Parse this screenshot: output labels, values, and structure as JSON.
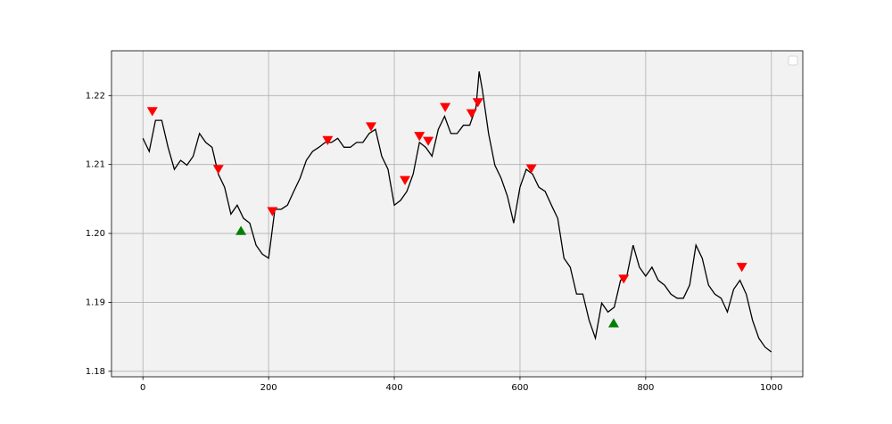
{
  "chart_data": {
    "type": "line",
    "xlim": [
      -50,
      1050
    ],
    "ylim": [
      1.1792,
      1.2265
    ],
    "xticks": [
      0,
      200,
      400,
      600,
      800,
      1000
    ],
    "yticks": [
      1.18,
      1.19,
      {
        "value": 1.2,
        "label": "1.20"
      },
      1.21,
      1.22
    ],
    "grid": true,
    "legend": "upper right",
    "series": [
      {
        "kind": "line",
        "color": "#000000",
        "x": [
          0,
          10,
          20,
          30,
          40,
          50,
          60,
          70,
          80,
          90,
          100,
          110,
          120,
          130,
          140,
          150,
          160,
          170,
          180,
          190,
          200,
          210,
          220,
          230,
          240,
          250,
          260,
          270,
          280,
          290,
          300,
          310,
          320,
          330,
          340,
          350,
          360,
          370,
          380,
          390,
          400,
          410,
          420,
          430,
          440,
          450,
          460,
          470,
          480,
          490,
          500,
          510,
          520,
          530,
          535,
          540,
          550,
          560,
          570,
          580,
          590,
          600,
          610,
          620,
          630,
          640,
          650,
          660,
          670,
          680,
          690,
          700,
          710,
          720,
          730,
          740,
          750,
          760,
          770,
          780,
          790,
          800,
          810,
          820,
          830,
          840,
          850,
          860,
          870,
          880,
          890,
          900,
          910,
          920,
          930,
          940,
          950,
          960,
          970,
          980,
          990,
          1000
        ],
        "values": [
          1.2138,
          1.2119,
          1.2164,
          1.2164,
          1.2125,
          1.2093,
          1.2106,
          1.2099,
          1.2112,
          1.2145,
          1.2132,
          1.2125,
          1.2086,
          1.2067,
          1.2028,
          1.2041,
          1.2022,
          1.2015,
          1.1983,
          1.197,
          1.1964,
          1.2035,
          1.2035,
          1.2041,
          1.2061,
          1.208,
          1.2106,
          1.2119,
          1.2125,
          1.2132,
          1.2132,
          1.2138,
          1.2125,
          1.2125,
          1.2132,
          1.2132,
          1.2145,
          1.2151,
          1.2112,
          1.2093,
          1.2041,
          1.2048,
          1.2061,
          1.2086,
          1.2132,
          1.2125,
          1.2112,
          1.2151,
          1.217,
          1.2145,
          1.2145,
          1.2157,
          1.2157,
          1.2183,
          1.2235,
          1.2209,
          1.2145,
          1.2099,
          1.208,
          1.2054,
          1.2015,
          1.2067,
          1.2093,
          1.2086,
          1.2067,
          1.2061,
          1.2041,
          1.2022,
          1.1964,
          1.1951,
          1.1912,
          1.1912,
          1.1874,
          1.1848,
          1.1899,
          1.1886,
          1.1893,
          1.1932,
          1.1938,
          1.1983,
          1.1951,
          1.1938,
          1.1951,
          1.1932,
          1.1925,
          1.1912,
          1.1906,
          1.1906,
          1.1925,
          1.1983,
          1.1964,
          1.1925,
          1.1912,
          1.1906,
          1.1886,
          1.1919,
          1.1932,
          1.1912,
          1.1874,
          1.1848,
          1.1835,
          1.1828
        ]
      },
      {
        "kind": "scatter",
        "marker": "down",
        "color": "#ff0000",
        "x": [
          15,
          120,
          206,
          294,
          363,
          417,
          440,
          454,
          481,
          523,
          533,
          618,
          765,
          953
        ],
        "values": [
          1.2177,
          1.2093,
          1.2032,
          1.2135,
          1.2155,
          1.2077,
          1.2141,
          1.2134,
          1.2183,
          1.2174,
          1.219,
          1.2094,
          1.1934,
          1.1951
        ]
      },
      {
        "kind": "scatter",
        "marker": "up",
        "color": "#008000",
        "x": [
          156,
          749
        ],
        "values": [
          1.2004,
          1.187
        ]
      }
    ]
  }
}
